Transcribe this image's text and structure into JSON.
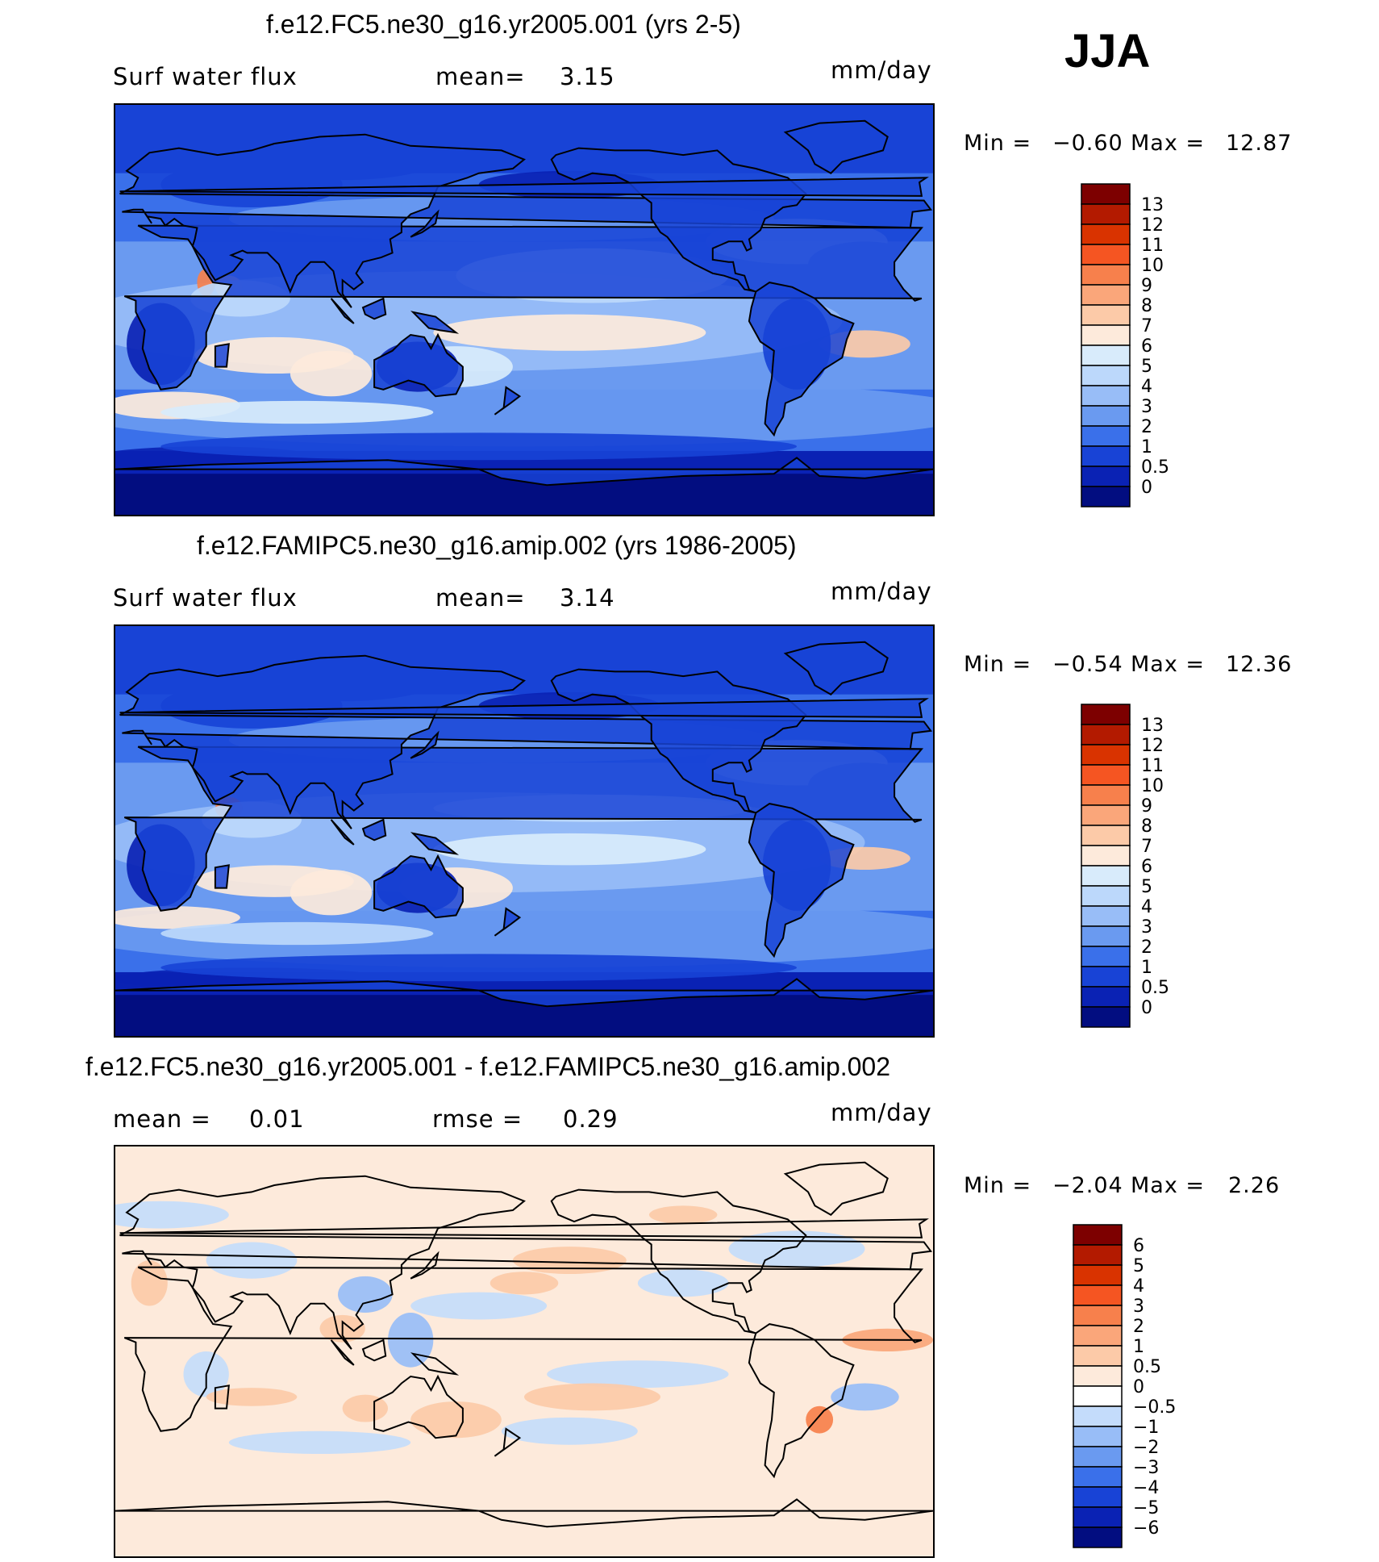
{
  "season": "JJA",
  "panels": [
    {
      "title": "f.e12.FC5.ne30_g16.yr2005.001 (yrs 2-5)",
      "left_label": "Surf water flux",
      "mid_label": "mean=",
      "mid_value": "3.15",
      "units": "mm/day",
      "min_label": "Min =",
      "min_value": "−0.60",
      "max_label": "Max =",
      "max_value": "12.87",
      "levels": [
        "13",
        "12",
        "11",
        "10",
        "9",
        "8",
        "7",
        "6",
        "5",
        "4",
        "3",
        "2",
        "1",
        "0.5",
        "0"
      ],
      "colors": [
        "#7d0000",
        "#b31a00",
        "#d93300",
        "#f55522",
        "#f7804c",
        "#faa67a",
        "#fccaa8",
        "#fdeadb",
        "#d8ebfb",
        "#bcd8fb",
        "#98bdf7",
        "#6a9af0",
        "#3a70ea",
        "#1843d6",
        "#0a22b4",
        "#020d80"
      ]
    },
    {
      "title": "f.e12.FAMIPC5.ne30_g16.amip.002 (yrs 1986-2005)",
      "left_label": "Surf water flux",
      "mid_label": "mean=",
      "mid_value": "3.14",
      "units": "mm/day",
      "min_label": "Min =",
      "min_value": "−0.54",
      "max_label": "Max =",
      "max_value": "12.36",
      "levels": [
        "13",
        "12",
        "11",
        "10",
        "9",
        "8",
        "7",
        "6",
        "5",
        "4",
        "3",
        "2",
        "1",
        "0.5",
        "0"
      ],
      "colors": [
        "#7d0000",
        "#b31a00",
        "#d93300",
        "#f55522",
        "#f7804c",
        "#faa67a",
        "#fccaa8",
        "#fdeadb",
        "#d8ebfb",
        "#bcd8fb",
        "#98bdf7",
        "#6a9af0",
        "#3a70ea",
        "#1843d6",
        "#0a22b4",
        "#020d80"
      ]
    },
    {
      "title": "f.e12.FC5.ne30_g16.yr2005.001 - f.e12.FAMIPC5.ne30_g16.amip.002",
      "left_label": "mean =",
      "left_value": "0.01",
      "mid_label": "rmse =",
      "mid_value": "0.29",
      "units": "mm/day",
      "min_label": "Min =",
      "min_value": "−2.04",
      "max_label": "Max =",
      "max_value": "2.26",
      "levels": [
        "6",
        "5",
        "4",
        "3",
        "2",
        "1",
        "0.5",
        "0",
        "−0.5",
        "−1",
        "−2",
        "−3",
        "−4",
        "−5",
        "−6"
      ],
      "colors": [
        "#7d0000",
        "#b31a00",
        "#d93300",
        "#f55522",
        "#f7804c",
        "#faa67a",
        "#fccaa8",
        "#fdeadb",
        "#ffffff",
        "#c4dcfb",
        "#98bdf7",
        "#6a9af0",
        "#3a70ea",
        "#1843d6",
        "#0a22b4",
        "#020d80"
      ]
    }
  ]
}
